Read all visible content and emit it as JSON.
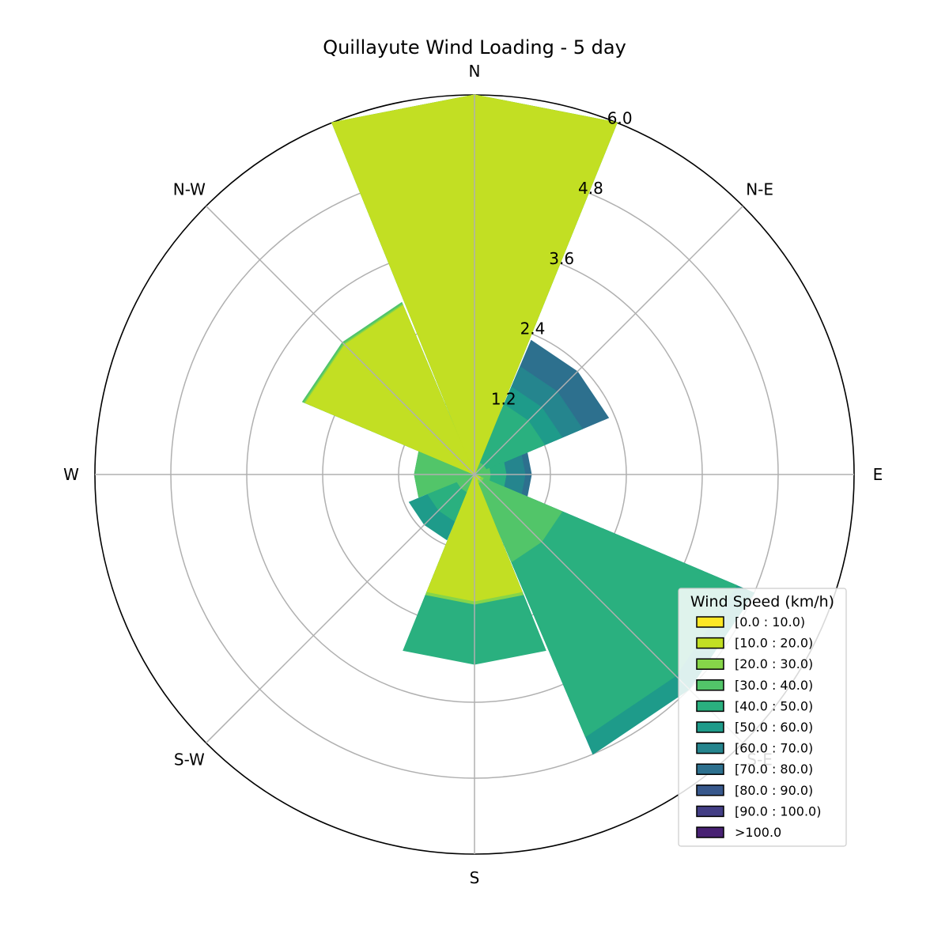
{
  "chart_data": {
    "type": "windrose",
    "title": "Quillayute Wind Loading - 5 day",
    "directions": [
      "N",
      "N-E",
      "E",
      "S-E",
      "S",
      "S-W",
      "W",
      "N-W"
    ],
    "rticks": [
      "1.2",
      "2.4",
      "3.6",
      "4.8",
      "6.0"
    ],
    "rmax": 6.0,
    "legend": {
      "title": "Wind Speed (km/h)",
      "placement": "lower-right",
      "bins": [
        {
          "label": "[0.0 : 10.0)",
          "color": "#fde725"
        },
        {
          "label": "[10.0 : 20.0)",
          "color": "#c2df23"
        },
        {
          "label": "[20.0 : 30.0)",
          "color": "#86d549"
        },
        {
          "label": "[30.0 : 40.0)",
          "color": "#52c569"
        },
        {
          "label": "[40.0 : 50.0)",
          "color": "#2ab07f"
        },
        {
          "label": "[50.0 : 60.0)",
          "color": "#1e9b8a"
        },
        {
          "label": "[60.0 : 70.0)",
          "color": "#25858e"
        },
        {
          "label": "[70.0 : 80.0)",
          "color": "#2d708e"
        },
        {
          "label": "[80.0 : 90.0)",
          "color": "#38588c"
        },
        {
          "label": "[90.0 : 100.0)",
          "color": "#433e85"
        },
        {
          "label": ">100.0",
          "color": "#482173"
        }
      ]
    },
    "series": [
      {
        "bin": "[10.0 : 20.0)",
        "color": "#c2df23",
        "values": [
          6.0,
          0,
          0,
          0.1,
          2.0,
          0,
          0,
          2.9
        ]
      },
      {
        "bin": "[20.0 : 30.0)",
        "color": "#86d549",
        "values": [
          6.0,
          0,
          0,
          0.15,
          2.05,
          0,
          0,
          2.92
        ]
      },
      {
        "bin": "[30.0 : 40.0)",
        "color": "#52c569",
        "values": [
          6.0,
          0.2,
          0.25,
          1.5,
          1.8,
          0.3,
          0.95,
          2.95
        ]
      },
      {
        "bin": "[40.0 : 50.0)",
        "color": "#2ab07f",
        "values": [
          6.0,
          1.2,
          0.5,
          4.5,
          3.0,
          0.8,
          0.95,
          2.95
        ]
      },
      {
        "bin": "[50.0 : 60.0)",
        "color": "#1e9b8a",
        "values": [
          0,
          1.5,
          0.5,
          4.8,
          2.37,
          1.12,
          0,
          0
        ]
      },
      {
        "bin": "[60.0 : 70.0)",
        "color": "#25858e",
        "values": [
          0,
          1.85,
          0.8,
          4.5,
          0,
          0,
          0,
          0
        ]
      },
      {
        "bin": "[70.0 : 80.0)",
        "color": "#2d708e",
        "values": [
          0,
          2.3,
          0.9,
          0,
          0,
          0,
          0,
          0
        ]
      }
    ]
  }
}
